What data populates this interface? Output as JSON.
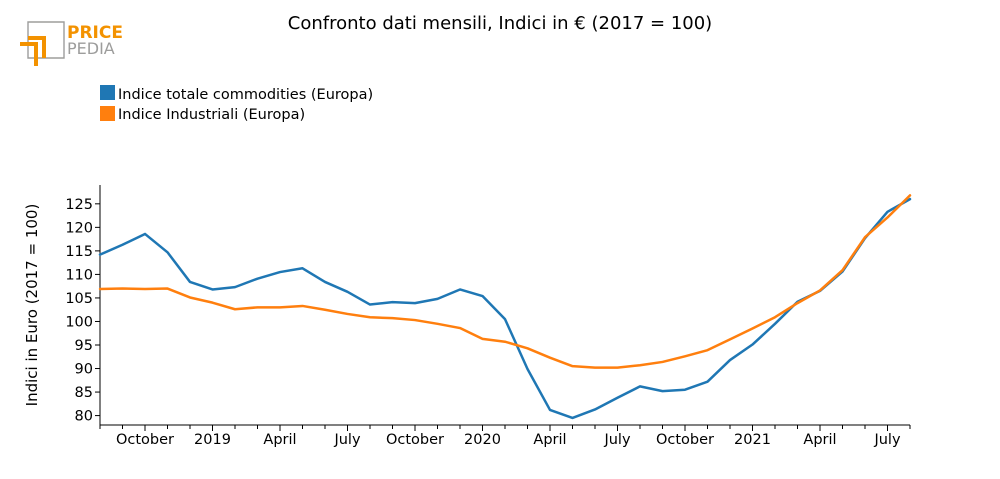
{
  "logo": {
    "line1": "PRICE",
    "line2": "PEDIA",
    "colors": {
      "orange": "#f39200",
      "gray": "#9d9d9c"
    }
  },
  "chart_data": {
    "type": "line",
    "title": "Confronto dati mensili, Indici in € (2017 = 100)",
    "ylabel": "Indici in Euro (2017 = 100)",
    "xlabel": "",
    "ylim": [
      78,
      129
    ],
    "yticks": [
      80,
      85,
      90,
      95,
      100,
      105,
      110,
      115,
      120,
      125
    ],
    "legend_position": "top-left",
    "x_labels": [
      {
        "index": 2,
        "label": "October"
      },
      {
        "index": 5,
        "label": "2019"
      },
      {
        "index": 8,
        "label": "April"
      },
      {
        "index": 11,
        "label": "July"
      },
      {
        "index": 14,
        "label": "October"
      },
      {
        "index": 17,
        "label": "2020"
      },
      {
        "index": 20,
        "label": "April"
      },
      {
        "index": 23,
        "label": "July"
      },
      {
        "index": 26,
        "label": "October"
      },
      {
        "index": 29,
        "label": "2021"
      },
      {
        "index": 32,
        "label": "April"
      },
      {
        "index": 35,
        "label": "July"
      }
    ],
    "x_range": [
      0,
      36
    ],
    "series": [
      {
        "name": "Indice totale commodities (Europa)",
        "color": "#1f77b4",
        "values": [
          114.2,
          116.3,
          118.6,
          114.7,
          108.4,
          106.8,
          107.3,
          109.1,
          110.5,
          111.3,
          108.4,
          106.3,
          103.6,
          104.1,
          103.9,
          104.8,
          106.8,
          105.4,
          100.5,
          89.9,
          81.2,
          79.5,
          81.3,
          83.8,
          86.2,
          85.2,
          85.5,
          87.2,
          91.8,
          95.1,
          99.5,
          104.2,
          106.5,
          110.6,
          117.7,
          123.3,
          126.0
        ]
      },
      {
        "name": "Indice Industriali (Europa)",
        "color": "#ff7f0e",
        "values": [
          106.9,
          107.0,
          106.9,
          107.0,
          105.1,
          104.0,
          102.6,
          103.0,
          103.0,
          103.3,
          102.5,
          101.6,
          100.9,
          100.7,
          100.3,
          99.5,
          98.6,
          96.3,
          95.7,
          94.3,
          92.3,
          90.5,
          90.2,
          90.2,
          90.7,
          91.4,
          92.6,
          93.9,
          96.2,
          98.5,
          100.9,
          103.9,
          106.6,
          110.9,
          117.9,
          122.1,
          126.8
        ]
      }
    ]
  }
}
